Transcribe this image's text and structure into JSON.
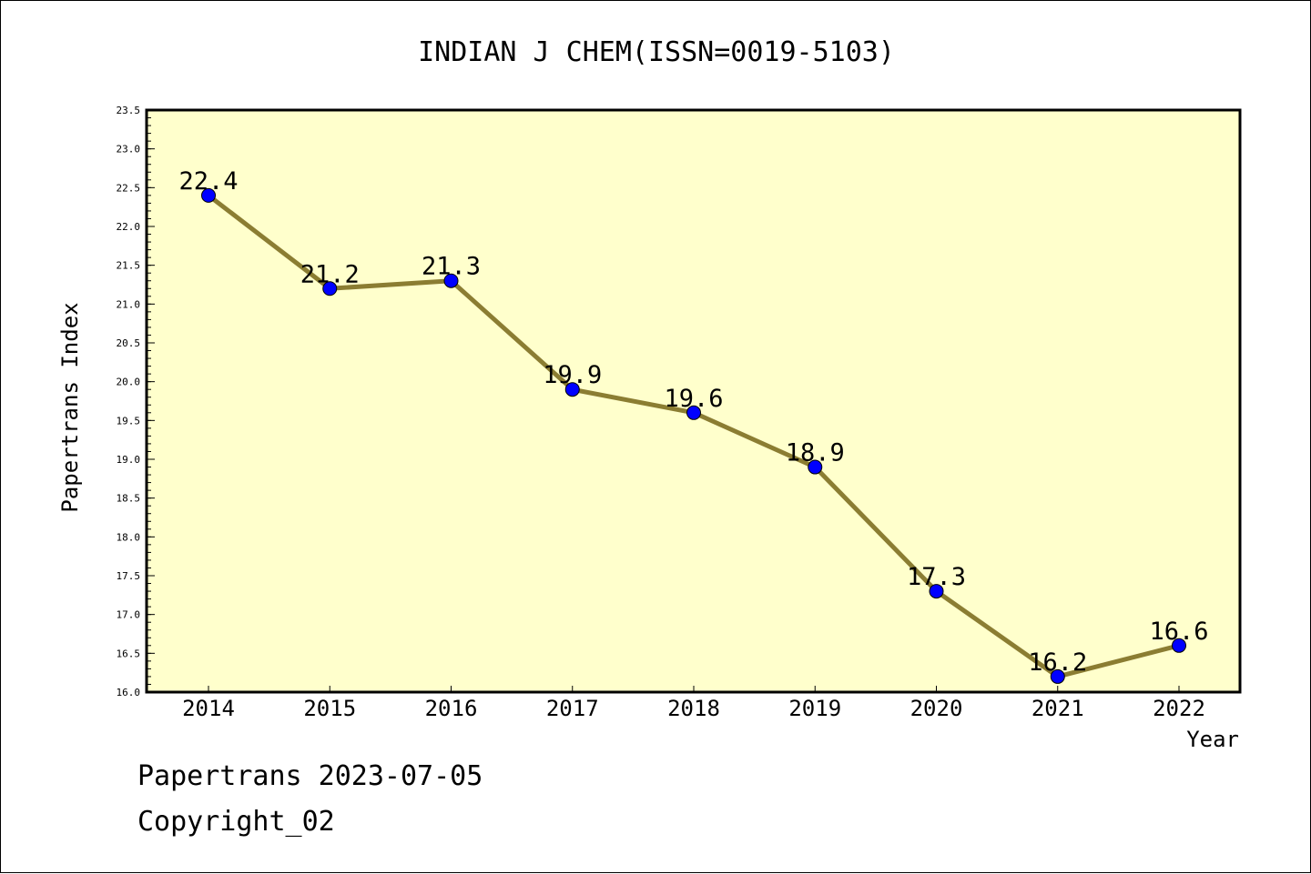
{
  "chart_data": {
    "type": "line",
    "title": "INDIAN J CHEM(ISSN=0019-5103)",
    "xlabel": "Year",
    "ylabel": "Papertrans Index",
    "categories": [
      "2014",
      "2015",
      "2016",
      "2017",
      "2018",
      "2019",
      "2020",
      "2021",
      "2022"
    ],
    "series": [
      {
        "values": [
          22.4,
          21.2,
          21.3,
          19.9,
          19.6,
          18.9,
          17.3,
          16.2,
          16.6
        ],
        "labels": [
          "22.4",
          "21.2",
          "21.3",
          "19.9",
          "19.6",
          "18.9",
          "17.3",
          "16.2",
          "16.6"
        ]
      }
    ],
    "ylim": [
      16.0,
      23.5
    ],
    "yticks": [
      "16.0",
      "16.5",
      "17.0",
      "17.5",
      "18.0",
      "18.5",
      "19.0",
      "19.5",
      "20.0",
      "20.5",
      "21.0",
      "21.5",
      "22.0",
      "22.5",
      "23.0",
      "23.5"
    ],
    "grid": false,
    "colors": {
      "plot_background": "#ffffcc",
      "line": "#8b7d32",
      "marker": "#0000ff"
    }
  },
  "footer": {
    "source": "Papertrans 2023-07-05",
    "copyright": "Copyright_02"
  }
}
